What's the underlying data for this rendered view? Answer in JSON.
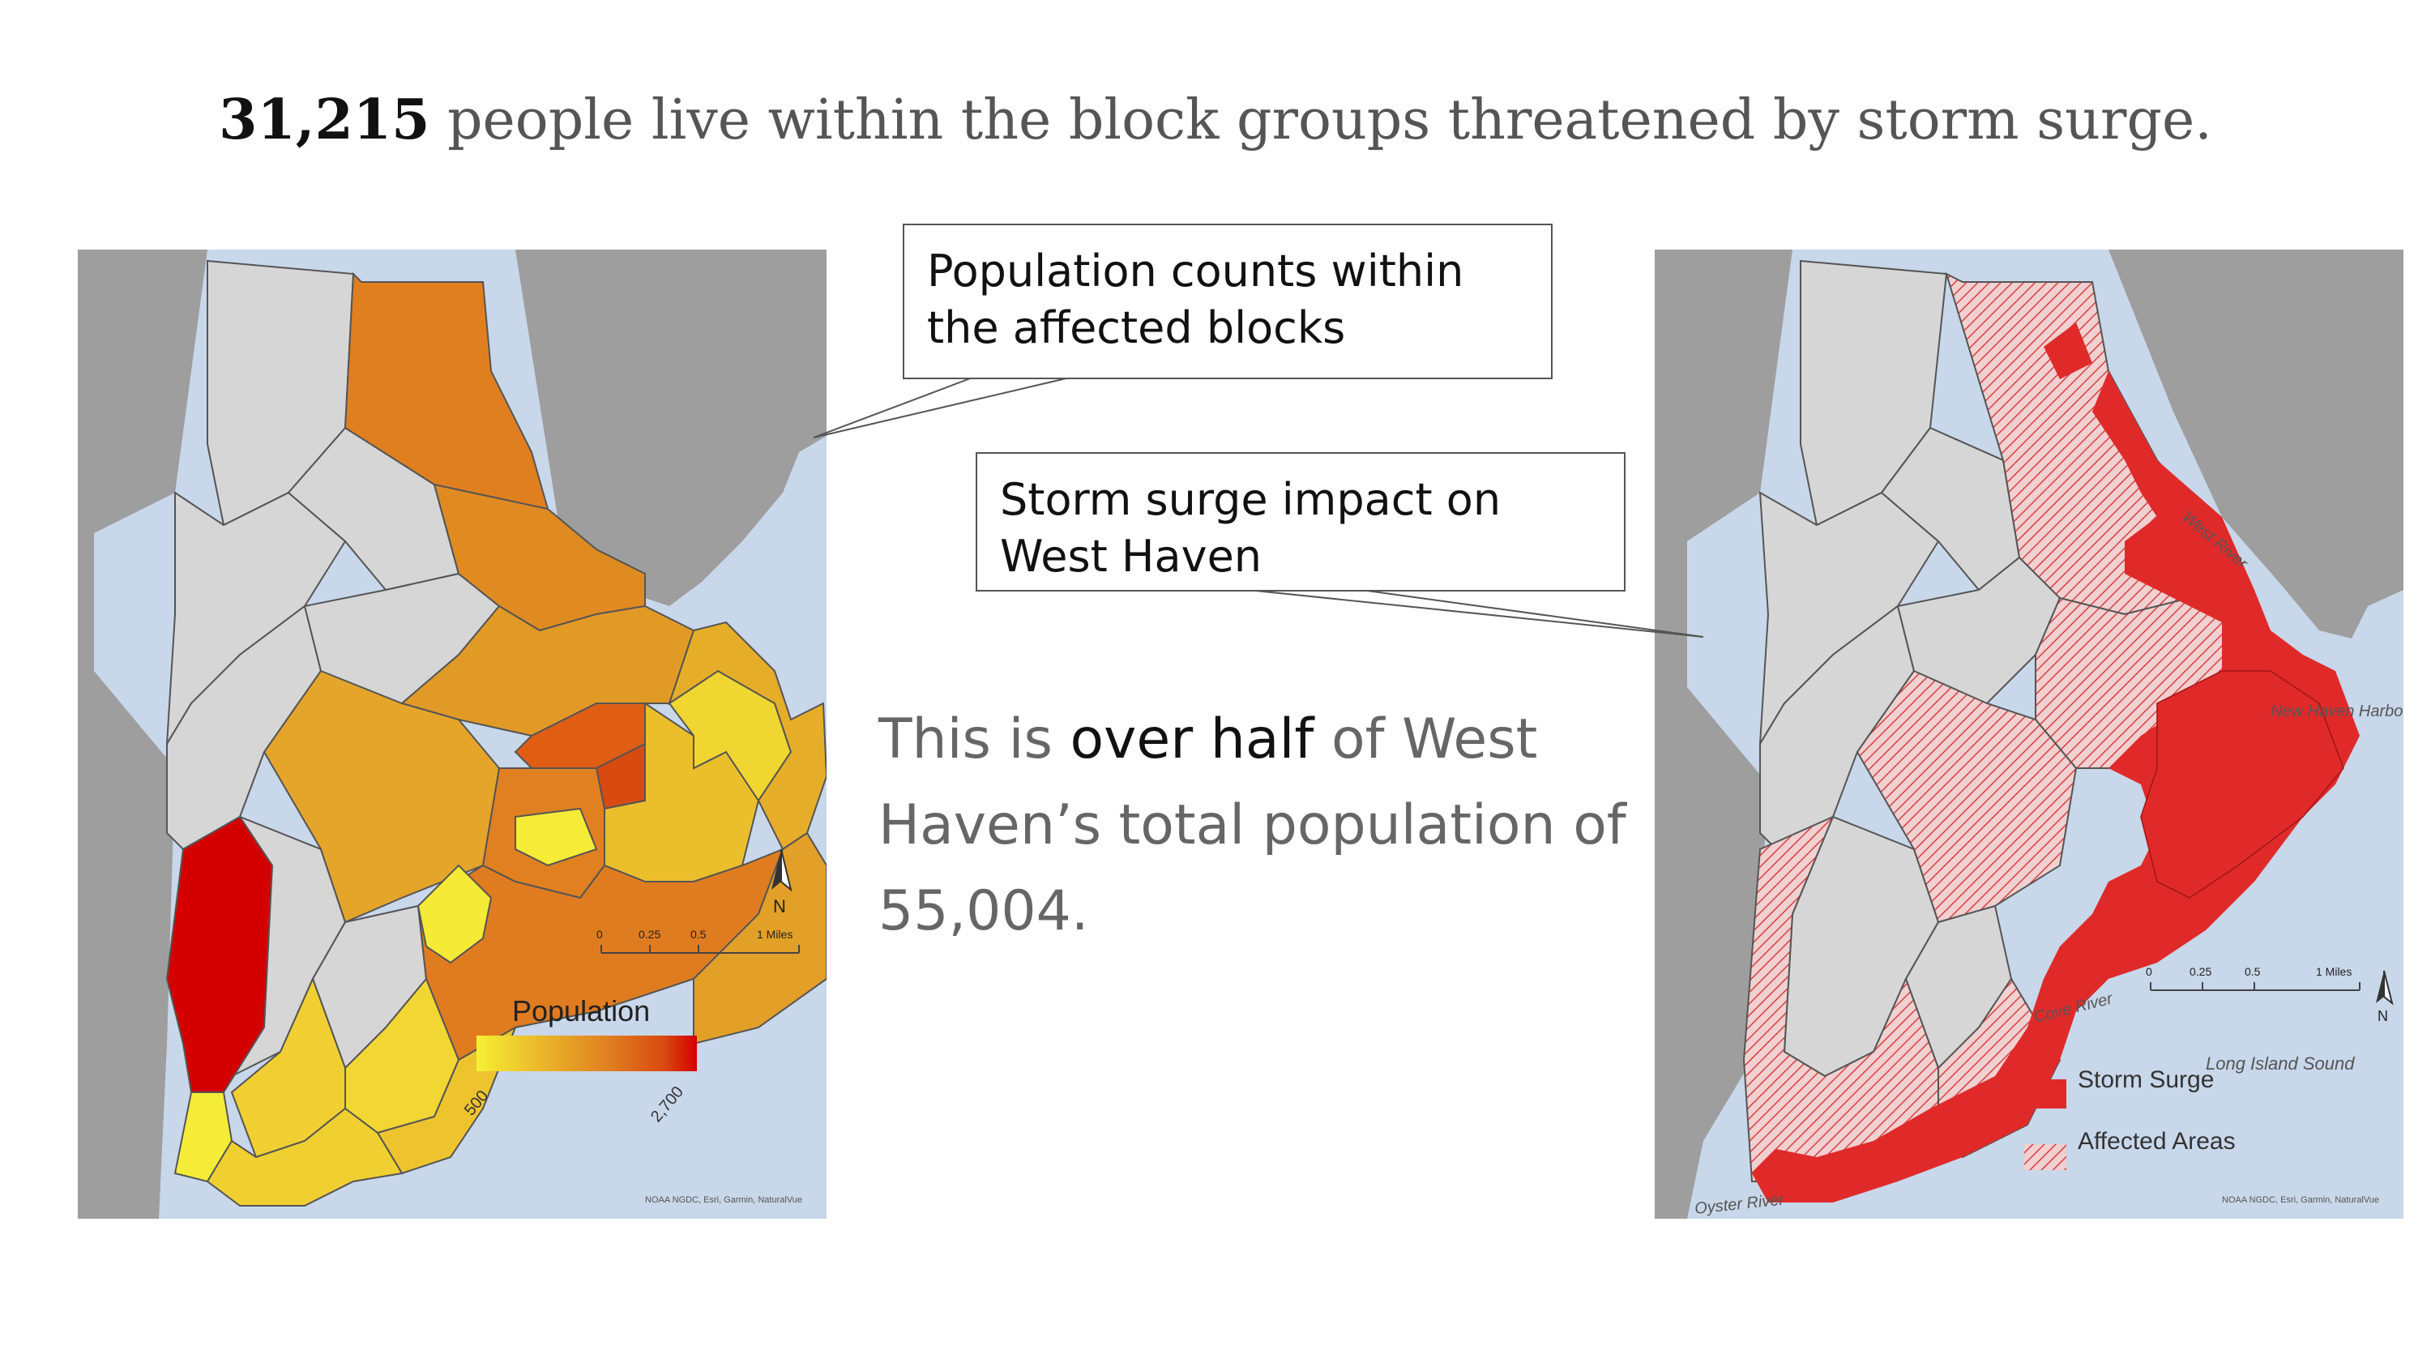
{
  "headline": {
    "stat": "31,215",
    "rest": "people live within the block groups threatened by storm surge."
  },
  "callouts": {
    "population": "Population counts within the affected blocks",
    "surge": "Storm surge impact on West Haven"
  },
  "body": {
    "pre": "This is",
    "emphasis": "over half",
    "post": "of West Haven’s total population of 55,004."
  },
  "left_map": {
    "legend_title": "Population",
    "legend_min": "500",
    "legend_max": "2,700",
    "gradient": [
      "#f5f034",
      "#eab62a",
      "#e07f20",
      "#d94a10",
      "#d40000"
    ],
    "north": "N",
    "scale": [
      "0",
      "0.25",
      "0.5",
      "1 Miles"
    ],
    "attribution": "NOAA NGDC, Esri, Garmin, NaturalVue"
  },
  "right_map": {
    "labels": {
      "west_river": "West River",
      "harbor": "New Haven Harbor",
      "cove_river": "Cove River",
      "sound": "Long Island Sound",
      "oyster_river": "Oyster River"
    },
    "legend_surge": "Storm Surge",
    "legend_affected": "Affected Areas",
    "surge_color": "#e02a2a",
    "north": "N",
    "scale": [
      "0",
      "0.25",
      "0.5",
      "1 Miles"
    ],
    "attribution": "NOAA NGDC, Esri, Garmin, NaturalVue"
  },
  "colors": {
    "water": "#c8d7ea",
    "land_outside": "#9e9e9e",
    "unaffected": "#d6d6d6"
  }
}
